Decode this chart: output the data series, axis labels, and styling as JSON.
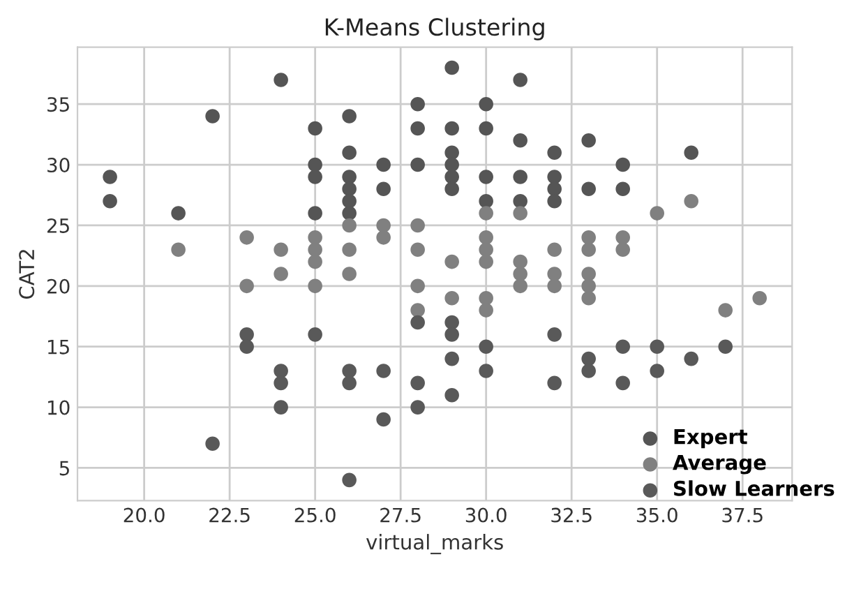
{
  "chart_data": {
    "type": "scatter",
    "title": "K-Means Clustering",
    "xlabel": "virtual_marks",
    "ylabel": "CAT2",
    "xlim": [
      18.05,
      38.95
    ],
    "ylim": [
      2.3,
      39.7
    ],
    "xticks": [
      {
        "value": 20,
        "label": "20.0"
      },
      {
        "value": 22.5,
        "label": "22.5"
      },
      {
        "value": 25,
        "label": "25.0"
      },
      {
        "value": 27.5,
        "label": "27.5"
      },
      {
        "value": 30,
        "label": "30.0"
      },
      {
        "value": 32.5,
        "label": "32.5"
      },
      {
        "value": 35,
        "label": "35.0"
      },
      {
        "value": 37.5,
        "label": "37.5"
      }
    ],
    "yticks": [
      5,
      10,
      15,
      20,
      25,
      30,
      35
    ],
    "grid": true,
    "legend": "bottom right",
    "marker": "circle",
    "series": [
      {
        "name": "Expert",
        "color": "#555555",
        "x": [
          19,
          19,
          21,
          22,
          24,
          25,
          25,
          25,
          25,
          26,
          26,
          26,
          26,
          26,
          26,
          27,
          27,
          28,
          28,
          28,
          29,
          29,
          29,
          29,
          29,
          29,
          30,
          30,
          30,
          30,
          31,
          31,
          31,
          31,
          32,
          32,
          32,
          32,
          33,
          33,
          34,
          34,
          36
        ],
        "values": [
          29,
          27,
          26,
          34,
          37,
          33,
          30,
          29,
          26,
          34,
          31,
          29,
          28,
          27,
          26,
          30,
          28,
          35,
          33,
          30,
          38,
          33,
          31,
          30,
          29,
          28,
          35,
          33,
          29,
          27,
          37,
          32,
          29,
          27,
          31,
          29,
          28,
          27,
          32,
          28,
          30,
          28,
          31
        ]
      },
      {
        "name": "Average",
        "color": "#808080",
        "x": [
          21,
          23,
          23,
          24,
          24,
          25,
          25,
          25,
          25,
          26,
          26,
          26,
          27,
          27,
          28,
          28,
          28,
          28,
          29,
          29,
          30,
          30,
          30,
          30,
          30,
          30,
          31,
          31,
          31,
          31,
          32,
          32,
          32,
          33,
          33,
          33,
          33,
          33,
          34,
          34,
          35,
          36,
          37,
          38
        ],
        "values": [
          23,
          24,
          20,
          23,
          21,
          24,
          23,
          22,
          20,
          25,
          23,
          21,
          25,
          24,
          25,
          23,
          20,
          18,
          22,
          19,
          26,
          24,
          23,
          22,
          19,
          18,
          26,
          22,
          21,
          20,
          23,
          21,
          20,
          24,
          23,
          21,
          20,
          19,
          24,
          23,
          26,
          27,
          18,
          19
        ]
      },
      {
        "name": "Slow Learners",
        "color": "#595959",
        "x": [
          22,
          23,
          23,
          24,
          24,
          24,
          25,
          26,
          26,
          26,
          27,
          27,
          28,
          28,
          28,
          29,
          29,
          29,
          29,
          30,
          30,
          32,
          32,
          33,
          33,
          34,
          34,
          35,
          35,
          36,
          37
        ],
        "values": [
          7,
          16,
          15,
          13,
          12,
          10,
          16,
          13,
          12,
          4,
          13,
          9,
          17,
          12,
          10,
          17,
          16,
          14,
          11,
          15,
          13,
          16,
          12,
          14,
          13,
          15,
          12,
          15,
          13,
          14,
          15
        ]
      }
    ]
  }
}
